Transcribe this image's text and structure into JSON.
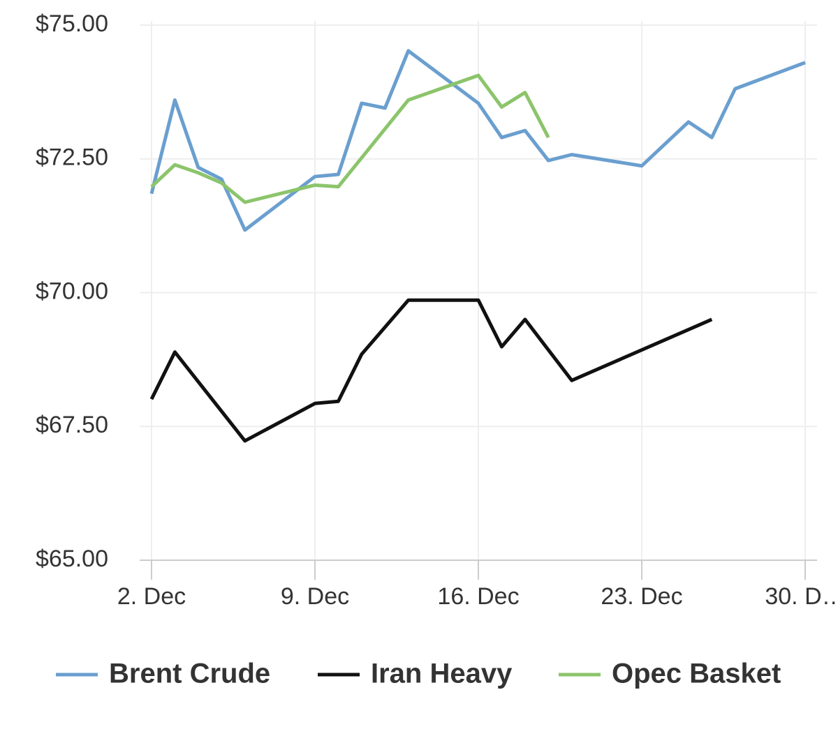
{
  "chart_data": {
    "type": "line",
    "xlim": [
      2,
      30
    ],
    "xticks": [
      {
        "value": 2,
        "label": "2. Dec"
      },
      {
        "value": 9,
        "label": "9. Dec"
      },
      {
        "value": 16,
        "label": "16. Dec"
      },
      {
        "value": 23,
        "label": "23. Dec"
      },
      {
        "value": 30,
        "label": "30. D…"
      }
    ],
    "ylim": [
      65,
      75
    ],
    "yticks": [
      {
        "value": 65,
        "label": "$65.00"
      },
      {
        "value": 67.5,
        "label": "$67.50"
      },
      {
        "value": 70,
        "label": "$70.00"
      },
      {
        "value": 72.5,
        "label": "$72.50"
      },
      {
        "value": 75,
        "label": "$75.00"
      }
    ],
    "grid": true,
    "legend": "bottom",
    "series": [
      {
        "name": "Brent Crude",
        "color": "#6a9fcf",
        "x": [
          2,
          3,
          4,
          5,
          6,
          9,
          10,
          11,
          12,
          13,
          16,
          17,
          18,
          19,
          20,
          23,
          25,
          26,
          27,
          30
        ],
        "values": [
          71.85,
          73.6,
          72.34,
          72.12,
          71.17,
          72.17,
          72.21,
          73.54,
          73.45,
          74.52,
          73.54,
          72.9,
          73.03,
          72.47,
          72.58,
          72.37,
          73.19,
          72.9,
          73.81,
          74.3
        ]
      },
      {
        "name": "Iran Heavy",
        "color": "#111111",
        "x": [
          2,
          3,
          6,
          9,
          10,
          11,
          13,
          16,
          17,
          18,
          20,
          26
        ],
        "values": [
          68.01,
          68.89,
          67.23,
          67.93,
          67.97,
          68.85,
          69.86,
          69.86,
          68.99,
          69.5,
          68.36,
          69.5
        ]
      },
      {
        "name": "Opec Basket",
        "color": "#8cc46b",
        "x": [
          2,
          3,
          4,
          5,
          6,
          9,
          10,
          13,
          16,
          17,
          18,
          19
        ],
        "values": [
          71.98,
          72.39,
          72.24,
          72.05,
          71.69,
          72.01,
          71.98,
          73.6,
          74.06,
          73.47,
          73.74,
          72.9
        ]
      }
    ]
  }
}
